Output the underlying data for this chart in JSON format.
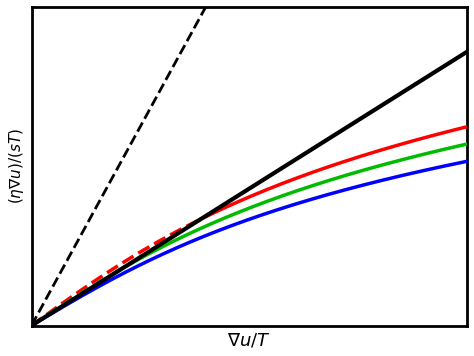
{
  "title": "",
  "xlabel": "$\\nabla u/T$",
  "ylabel": "$(\\eta\\nabla u)/(sT)$",
  "bg_color": "#ffffff",
  "black_solid_slope": 0.55,
  "black_dashed_slope": 1.6,
  "xmin": 0.0,
  "xmax": 5.0,
  "ymin": 0.0,
  "ymax": 3.2,
  "colors": [
    "#ff0000",
    "#00bb00",
    "#0000ff"
  ],
  "curve_params": [
    {
      "A": 1.15,
      "k": 0.55
    },
    {
      "A": 1.05,
      "k": 0.55
    },
    {
      "A": 0.95,
      "k": 0.55
    }
  ],
  "linewidth_colored": 2.5,
  "linewidth_black_solid": 3.0,
  "linewidth_black_dashed": 2.0
}
